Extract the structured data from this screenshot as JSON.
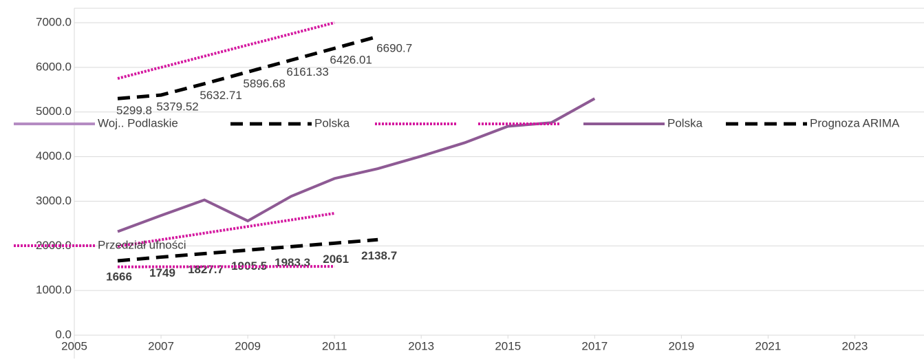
{
  "chart_data": {
    "type": "line",
    "xlim": [
      2005,
      2024.5
    ],
    "xticks": [
      2005,
      2007,
      2009,
      2011,
      2013,
      2015,
      2017,
      2019,
      2021,
      2023
    ],
    "ylim": [
      0,
      7000
    ],
    "yticks": [
      {
        "value": 0,
        "label": "0.0"
      },
      {
        "value": 1000,
        "label": "1000.0"
      },
      {
        "value": 2000,
        "label": "2000.0"
      },
      {
        "value": 3000,
        "label": "3000.0"
      },
      {
        "value": 4000,
        "label": "4000.0"
      },
      {
        "value": 5000,
        "label": "5000.0"
      },
      {
        "value": 6000,
        "label": "6000.0"
      },
      {
        "value": 7000,
        "label": "7000.0"
      }
    ],
    "grid": true,
    "series": [
      {
        "name": "Woj.. Podlaskie",
        "color": "#b58cc2",
        "style": "solid",
        "x": [],
        "values": []
      },
      {
        "name": "Polska",
        "color": "#000000",
        "style": "dashed",
        "x": [
          2006,
          2007,
          2008,
          2009,
          2010,
          2011,
          2012
        ],
        "values": [
          5299.8,
          5379.52,
          5632.71,
          5896.68,
          6161.33,
          6426.01,
          6690.7
        ]
      },
      {
        "color": "#d4189f",
        "style": "dotted",
        "x": [
          2006,
          2011
        ],
        "values": [
          5750,
          7000
        ]
      },
      {
        "color": "#d4189f",
        "style": "dotted",
        "x": [
          2006,
          2011
        ],
        "values": [
          1990,
          2730
        ]
      },
      {
        "name": "Polska",
        "color": "#8e5a94",
        "style": "solid",
        "x": [
          2006,
          2007,
          2008,
          2009,
          2010,
          2011,
          2012,
          2013,
          2014,
          2015,
          2016,
          2017
        ],
        "values": [
          2320,
          2680,
          3030,
          2560,
          3110,
          3510,
          3730,
          4010,
          4310,
          4680,
          4760,
          5300
        ]
      },
      {
        "name": "Prognoza ARIMA",
        "color": "#000000",
        "style": "dashed",
        "bold_labels": true,
        "x": [
          2006,
          2007,
          2008,
          2009,
          2010,
          2011,
          2012
        ],
        "values": [
          1666,
          1749,
          1827.7,
          1905.5,
          1983.3,
          2061,
          2138.7
        ]
      },
      {
        "name": "Przedział ufności",
        "color": "#d4189f",
        "style": "dotted",
        "x": [
          2006,
          2011
        ],
        "values": [
          1530,
          1540
        ]
      }
    ]
  }
}
